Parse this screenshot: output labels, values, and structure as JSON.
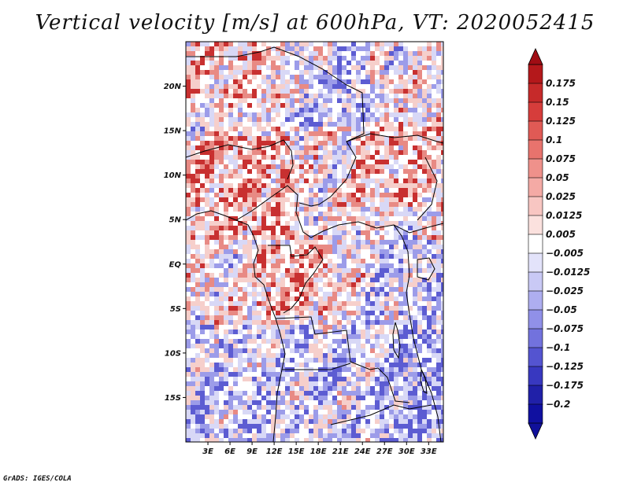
{
  "title": "Vertical velocity [m/s] at 600hPa, VT: 2020052415",
  "credit": "GrADS: IGES/COLA",
  "map": {
    "lat_labels": [
      "20N",
      "15N",
      "10N",
      "5N",
      "EQ",
      "5S",
      "10S",
      "15S"
    ],
    "lat_values": [
      20,
      15,
      10,
      5,
      0,
      -5,
      -10,
      -15
    ],
    "lon_labels": [
      "3E",
      "6E",
      "9E",
      "12E",
      "15E",
      "18E",
      "21E",
      "24E",
      "27E",
      "30E",
      "33E"
    ],
    "lon_values": [
      3,
      6,
      9,
      12,
      15,
      18,
      21,
      24,
      27,
      30,
      33
    ],
    "lon_range": [
      0,
      35
    ],
    "lat_range": [
      -20,
      25
    ]
  },
  "colorbar": {
    "labels": [
      "0.175",
      "0.15",
      "0.125",
      "0.1",
      "0.075",
      "0.05",
      "0.025",
      "0.0125",
      "0.005",
      "−0.005",
      "−0.0125",
      "−0.025",
      "−0.05",
      "−0.075",
      "−0.1",
      "−0.125",
      "−0.175",
      "−0.2"
    ],
    "colors": [
      "#b4181b",
      "#c62a2a",
      "#d63d3b",
      "#e05a55",
      "#e8736d",
      "#ef918b",
      "#f4aaa5",
      "#f8c6c2",
      "#fbe1de",
      "#ffffff",
      "#e3e3fa",
      "#c9c9f5",
      "#aeaef0",
      "#9090e8",
      "#7272dd",
      "#5454d0",
      "#3838c0",
      "#2020a8",
      "#1010a0"
    ]
  },
  "field_colors": {
    "strong_up": "#c83030",
    "up": "#e88a84",
    "weak_up": "#f6cfcb",
    "neutral": "#ffffff",
    "weak_down": "#d8d8f6",
    "down": "#9c9ce9",
    "strong_down": "#5c5cd2"
  }
}
